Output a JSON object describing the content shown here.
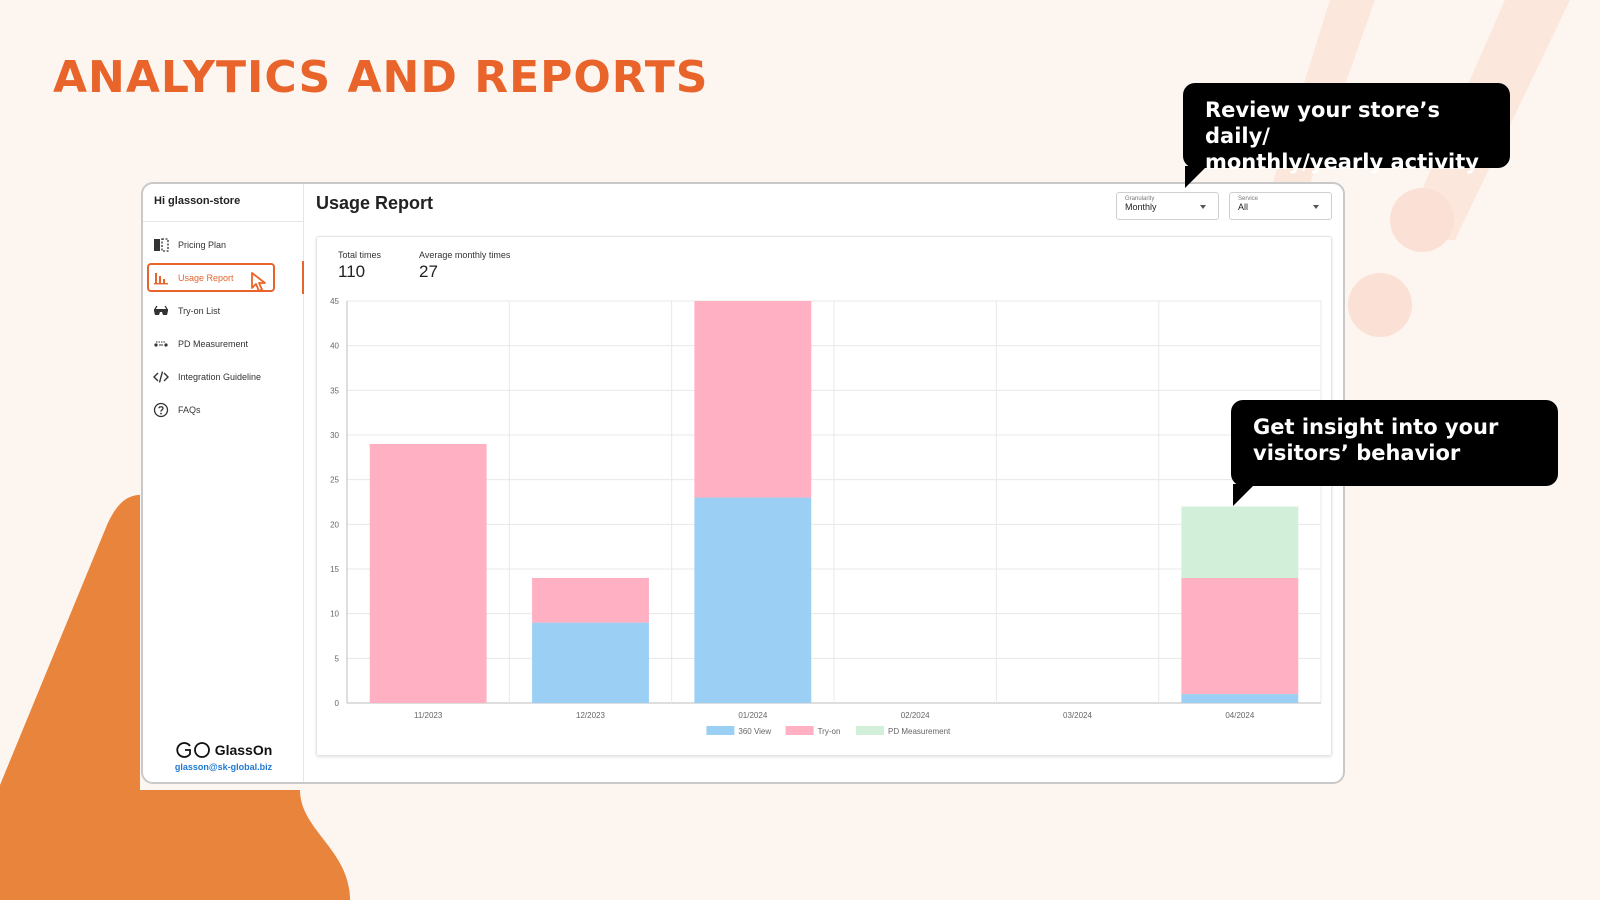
{
  "heading": "ANALYTICS AND REPORTS",
  "callouts": [
    {
      "lines": [
        "Review your store’s daily/",
        "monthly/yearly activity"
      ]
    },
    {
      "lines": [
        "Get insight into your",
        "visitors’ behavior"
      ]
    }
  ],
  "sidebar": {
    "greeting": "Hi glasson-store",
    "items": [
      {
        "label": "Pricing Plan",
        "icon": "pricing-plan-icon",
        "active": false
      },
      {
        "label": "Usage Report",
        "icon": "bar-chart-icon",
        "active": true
      },
      {
        "label": "Try-on List",
        "icon": "glasses-icon",
        "active": false
      },
      {
        "label": "PD Measurement",
        "icon": "pd-measurement-icon",
        "active": false
      },
      {
        "label": "Integration Guideline",
        "icon": "code-icon",
        "active": false
      },
      {
        "label": "FAQs",
        "icon": "question-circle-icon",
        "active": false
      }
    ],
    "brand": {
      "name": "GlassOn",
      "email": "glasson@sk-global.biz"
    }
  },
  "report": {
    "title": "Usage Report",
    "granularity": {
      "label": "Granularity",
      "value": "Monthly"
    },
    "service": {
      "label": "Service",
      "value": "All"
    },
    "stats": {
      "total_label": "Total times",
      "total_value": "110",
      "avg_label": "Average monthly times",
      "avg_value": "27"
    }
  },
  "colors": {
    "accent": "#e8642a",
    "decor_orange": "#e8843c",
    "decor_pale": "#fbe7dc",
    "series_360": "#9ccff4",
    "series_tryon": "#ffb0c2",
    "series_pd": "#d2efd9"
  },
  "chart_data": {
    "type": "bar",
    "stacked": true,
    "categories": [
      "11/2023",
      "12/2023",
      "01/2024",
      "02/2024",
      "03/2024",
      "04/2024"
    ],
    "series": [
      {
        "name": "360 View",
        "values": [
          0,
          9,
          23,
          0,
          0,
          1
        ],
        "color": "#9ccff4"
      },
      {
        "name": "Try-on",
        "values": [
          29,
          5,
          22,
          0,
          0,
          13
        ],
        "color": "#ffb0c2"
      },
      {
        "name": "PD Measurement",
        "values": [
          0,
          0,
          0,
          0,
          0,
          8
        ],
        "color": "#d2efd9"
      }
    ],
    "y_ticks": [
      0,
      5,
      10,
      15,
      20,
      25,
      30,
      35,
      40,
      45
    ],
    "ylim": [
      0,
      45
    ],
    "grid": true,
    "legend": "bottom-center"
  }
}
